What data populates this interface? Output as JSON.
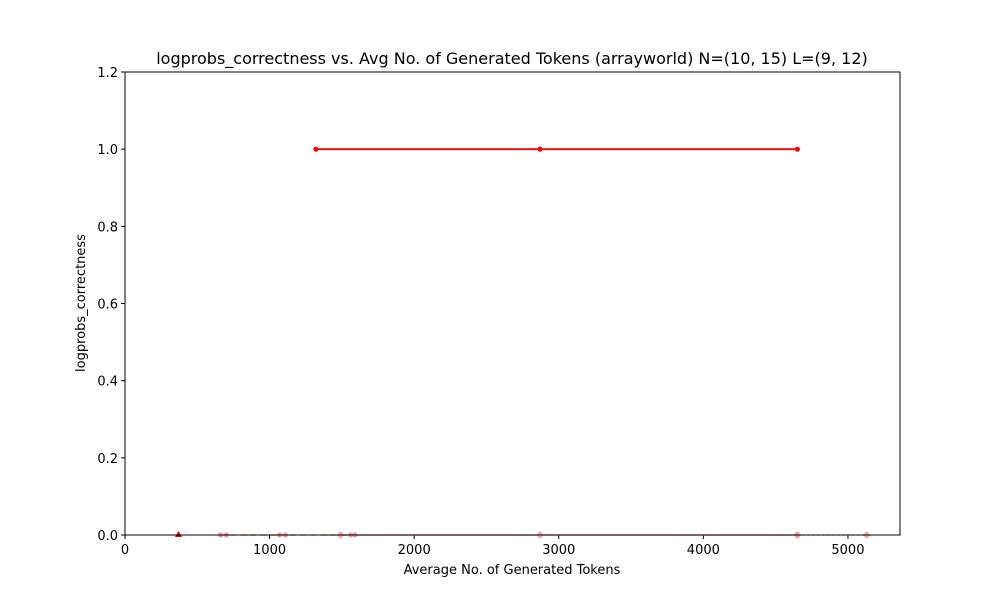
{
  "chart_data": {
    "type": "line",
    "title": "logprobs_correctness vs. Avg No. of Generated Tokens (arrayworld) N=(10, 15) L=(9, 12)",
    "xlabel": "Average No. of Generated Tokens",
    "ylabel": "logprobs_correctness",
    "xlim": [
      0,
      5360
    ],
    "ylim": [
      0,
      1.2
    ],
    "xticks": [
      0,
      1000,
      2000,
      3000,
      4000,
      5000
    ],
    "yticks": [
      0.0,
      0.2,
      0.4,
      0.6,
      0.8,
      1.0,
      1.2
    ],
    "xtick_labels": [
      "0",
      "1000",
      "2000",
      "3000",
      "4000",
      "5000"
    ],
    "ytick_labels": [
      "0.0",
      "0.2",
      "0.4",
      "0.6",
      "0.8",
      "1.0",
      "1.2"
    ],
    "grid": false,
    "series": [
      {
        "color": "#ff0000",
        "style": "solid",
        "marker": "circle",
        "points": [
          {
            "x": 1320,
            "y": 1.0
          },
          {
            "x": 2870,
            "y": 1.0
          },
          {
            "x": 4650,
            "y": 1.0
          }
        ]
      },
      {
        "color": "#e8a0a0",
        "style": "dashed",
        "marker": "circle",
        "points": [
          {
            "x": 660,
            "y": 0.0
          },
          {
            "x": 700,
            "y": 0.0
          },
          {
            "x": 1070,
            "y": 0.0
          },
          {
            "x": 1110,
            "y": 0.0
          },
          {
            "x": 1560,
            "y": 0.0
          },
          {
            "x": 1590,
            "y": 0.0
          }
        ]
      },
      {
        "color": "#e8a0a0",
        "style": "solid",
        "marker": "diamond",
        "points": [
          {
            "x": 1490,
            "y": 0.0
          },
          {
            "x": 2870,
            "y": 0.0
          },
          {
            "x": 4650,
            "y": 0.0
          }
        ]
      },
      {
        "color": "#e8a0a0",
        "style": "dotted",
        "marker": "diamond",
        "points": [
          {
            "x": 4650,
            "y": 0.0
          },
          {
            "x": 5130,
            "y": 0.0
          }
        ]
      },
      {
        "color": "#cc0000",
        "style": "none",
        "marker": "triangle",
        "points": [
          {
            "x": 370,
            "y": 0.0
          }
        ]
      }
    ]
  }
}
